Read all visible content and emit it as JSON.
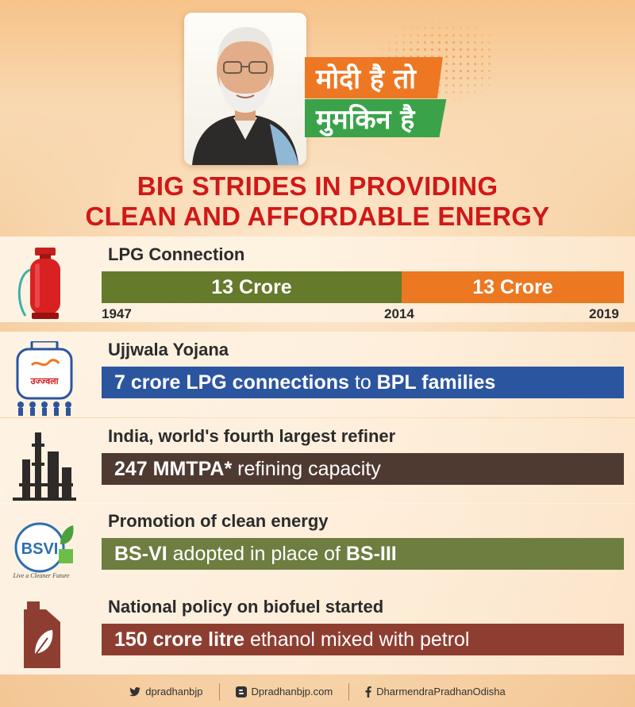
{
  "slogan": {
    "line1": "मोदी है तो",
    "line2": "मुमकिन है"
  },
  "headline": {
    "line1": "BIG STRIDES IN PROVIDING",
    "line2": "CLEAN AND AFFORDABLE ENERGY"
  },
  "sections": [
    {
      "title": "LPG Connection",
      "icon": "lpg-cylinder-icon",
      "segments": [
        {
          "label": "13 Crore",
          "color": "#657a2a"
        },
        {
          "label": "13 Crore",
          "color": "#ec7822"
        }
      ],
      "ticks": [
        "1947",
        "2014",
        "2019"
      ]
    },
    {
      "title": "Ujjwala Yojana",
      "icon": "ujjwala-logo-icon",
      "bar_color": "#2c55a0",
      "parts": [
        "7 crore LPG connections",
        " to ",
        "BPL families"
      ]
    },
    {
      "title": "India, world's fourth largest refiner",
      "icon": "refinery-icon",
      "bar_color": "#4f3a32",
      "parts": [
        "247 MMTPA*",
        " refining capacity"
      ]
    },
    {
      "title": "Promotion of clean energy",
      "icon": "bsvi-logo-icon",
      "bar_color": "#6e7d40",
      "parts": [
        "BS-VI",
        " adopted in place of ",
        "BS-III"
      ],
      "logo_text": "BSVI",
      "logo_tagline": "Live a Cleaner Future"
    },
    {
      "title": "National policy on biofuel started",
      "icon": "biofuel-jerrycan-icon",
      "bar_color": "#8e3e30",
      "parts": [
        "150 crore litre",
        " ethanol mixed with petrol"
      ]
    }
  ],
  "logo_ujjwala_text": "उज्ज्वला",
  "footer": {
    "twitter": "dpradhanbjp",
    "blog": "Dpradhanbjp.com",
    "facebook": "DharmendraPradhanOdisha"
  }
}
